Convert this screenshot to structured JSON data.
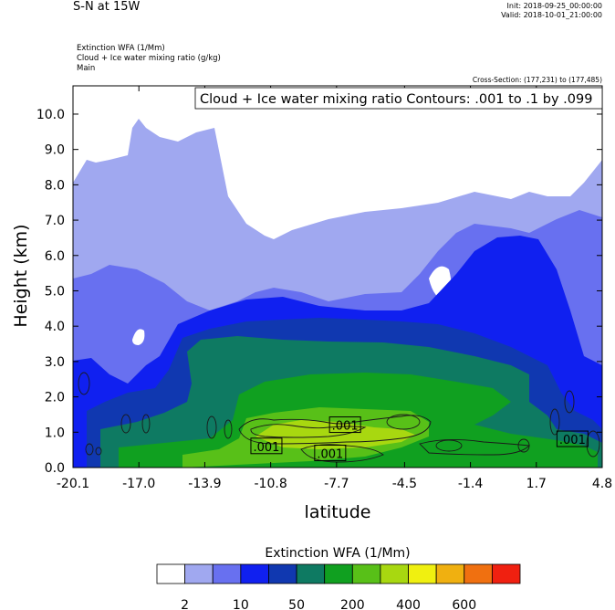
{
  "header": {
    "title": "S-N at 15W",
    "init": "Init: 2018-09-25_00:00:00",
    "valid": "Valid: 2018-10-01_21:00:00",
    "field1": "Extinction WFA   (1/Mm)",
    "field2": "Cloud + Ice water mixing ratio   (g/kg)",
    "field3": "Main",
    "cross_section": "Cross-Section: (177,231) to (177,485)"
  },
  "chart_data": {
    "type": "heatmap",
    "title": "S-N at 15W",
    "xlabel": "latitude",
    "ylabel": "Height (km)",
    "xlim": [
      -20.1,
      4.8
    ],
    "ylim": [
      0.0,
      10.8
    ],
    "x_ticks": [
      "-20.1",
      "-17.0",
      "-13.9",
      "-10.8",
      "-7.7",
      "-4.5",
      "-1.4",
      "1.7",
      "4.8"
    ],
    "y_ticks": [
      "0.0",
      "1.0",
      "2.0",
      "3.0",
      "4.0",
      "5.0",
      "6.0",
      "7.0",
      "8.0",
      "9.0",
      "10.0"
    ],
    "contour_title": "Cloud + Ice water mixing ratio Contours: .001 to .1 by .099",
    "contour_labels": [
      {
        "text": ".001",
        "lat": -11.0,
        "height": 0.6
      },
      {
        "text": ".001",
        "lat": -8.0,
        "height": 0.4
      },
      {
        "text": ".001",
        "lat": -7.3,
        "height": 1.2
      },
      {
        "text": ".001",
        "lat": 3.4,
        "height": 0.8
      }
    ],
    "colorbar": {
      "title": "Extinction WFA  (1/Mm)",
      "colors": [
        "#ffffff",
        "#a0a8f0",
        "#6870f0",
        "#1020f0",
        "#1038b0",
        "#0e7a62",
        "#10a020",
        "#58c018",
        "#a8d810",
        "#f0f010",
        "#f0b010",
        "#f07010",
        "#f02010"
      ],
      "tick_labels": [
        "2",
        "10",
        "50",
        "200",
        "400",
        "600"
      ]
    }
  }
}
